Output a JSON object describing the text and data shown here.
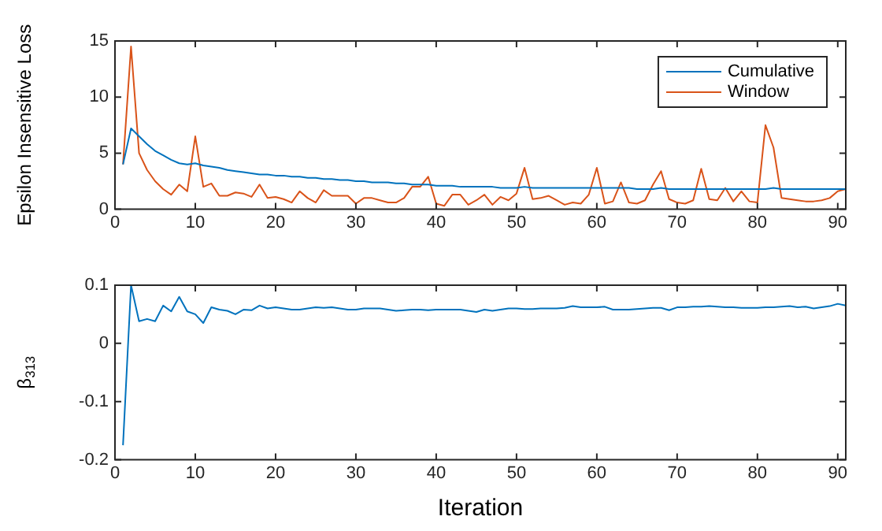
{
  "chart_data": [
    {
      "type": "line",
      "ylabel": "Epsilon Insensitive Loss",
      "x": [
        1,
        2,
        3,
        4,
        5,
        6,
        7,
        8,
        9,
        10,
        11,
        12,
        13,
        14,
        15,
        16,
        17,
        18,
        19,
        20,
        21,
        22,
        23,
        24,
        25,
        26,
        27,
        28,
        29,
        30,
        31,
        32,
        33,
        34,
        35,
        36,
        37,
        38,
        39,
        40,
        41,
        42,
        43,
        44,
        45,
        46,
        47,
        48,
        49,
        50,
        51,
        52,
        53,
        54,
        55,
        56,
        57,
        58,
        59,
        60,
        61,
        62,
        63,
        64,
        65,
        66,
        67,
        68,
        69,
        70,
        71,
        72,
        73,
        74,
        75,
        76,
        77,
        78,
        79,
        80,
        81,
        82,
        83,
        84,
        85,
        86,
        87,
        88,
        89,
        90,
        91
      ],
      "xlim": [
        0,
        91
      ],
      "xticks": [
        0,
        10,
        20,
        30,
        40,
        50,
        60,
        70,
        80,
        90
      ],
      "ylim": [
        0,
        15
      ],
      "yticks": [
        0,
        5,
        10,
        15
      ],
      "legend": "top right",
      "grid": false,
      "series": [
        {
          "name": "Cumulative",
          "color": "#0072bd",
          "values": [
            4,
            7.2,
            6.5,
            5.8,
            5.2,
            4.8,
            4.4,
            4.1,
            4,
            4.1,
            3.9,
            3.8,
            3.7,
            3.5,
            3.4,
            3.3,
            3.2,
            3.1,
            3.1,
            3,
            3,
            2.9,
            2.9,
            2.8,
            2.8,
            2.7,
            2.7,
            2.6,
            2.6,
            2.5,
            2.5,
            2.4,
            2.4,
            2.4,
            2.3,
            2.3,
            2.2,
            2.2,
            2.2,
            2.1,
            2.1,
            2.1,
            2,
            2,
            2,
            2,
            2,
            1.9,
            1.9,
            1.9,
            2,
            1.9,
            1.9,
            1.9,
            1.9,
            1.9,
            1.9,
            1.9,
            1.9,
            1.9,
            1.9,
            1.9,
            1.9,
            1.9,
            1.8,
            1.8,
            1.8,
            1.9,
            1.8,
            1.8,
            1.8,
            1.8,
            1.8,
            1.8,
            1.8,
            1.8,
            1.8,
            1.8,
            1.8,
            1.8,
            1.8,
            1.9,
            1.8,
            1.8,
            1.8,
            1.8,
            1.8,
            1.8,
            1.8,
            1.8,
            1.8
          ]
        },
        {
          "name": "Window",
          "color": "#d95319",
          "values": [
            4,
            14.5,
            5,
            3.5,
            2.5,
            1.8,
            1.3,
            2.2,
            1.6,
            6.5,
            2,
            2.3,
            1.2,
            1.2,
            1.5,
            1.4,
            1.1,
            2.2,
            1,
            1.1,
            0.9,
            0.6,
            1.6,
            1,
            0.6,
            1.7,
            1.2,
            1.2,
            1.2,
            0.5,
            1,
            1,
            0.8,
            0.6,
            0.6,
            1,
            2,
            2,
            2.9,
            0.5,
            0.3,
            1.3,
            1.3,
            0.4,
            0.8,
            1.3,
            0.4,
            1.1,
            0.8,
            1.4,
            3.7,
            0.9,
            1,
            1.2,
            0.8,
            0.4,
            0.6,
            0.5,
            1.3,
            3.7,
            0.5,
            0.7,
            2.4,
            0.6,
            0.5,
            0.8,
            2.2,
            3.4,
            0.9,
            0.6,
            0.5,
            0.8,
            3.6,
            0.9,
            0.8,
            1.9,
            0.7,
            1.6,
            0.7,
            0.6,
            7.5,
            5.5,
            1,
            0.9,
            0.8,
            0.7,
            0.7,
            0.8,
            1,
            1.6,
            1.8
          ]
        }
      ]
    },
    {
      "type": "line",
      "xlabel": "Iteration",
      "ylabel": "β$_{313}$",
      "x": [
        1,
        2,
        3,
        4,
        5,
        6,
        7,
        8,
        9,
        10,
        11,
        12,
        13,
        14,
        15,
        16,
        17,
        18,
        19,
        20,
        21,
        22,
        23,
        24,
        25,
        26,
        27,
        28,
        29,
        30,
        31,
        32,
        33,
        34,
        35,
        36,
        37,
        38,
        39,
        40,
        41,
        42,
        43,
        44,
        45,
        46,
        47,
        48,
        49,
        50,
        51,
        52,
        53,
        54,
        55,
        56,
        57,
        58,
        59,
        60,
        61,
        62,
        63,
        64,
        65,
        66,
        67,
        68,
        69,
        70,
        71,
        72,
        73,
        74,
        75,
        76,
        77,
        78,
        79,
        80,
        81,
        82,
        83,
        84,
        85,
        86,
        87,
        88,
        89,
        90,
        91
      ],
      "xlim": [
        0,
        91
      ],
      "xticks": [
        0,
        10,
        20,
        30,
        40,
        50,
        60,
        70,
        80,
        90
      ],
      "ylim": [
        -0.2,
        0.1
      ],
      "yticks": [
        -0.2,
        -0.1,
        0,
        0.1
      ],
      "grid": false,
      "series": [
        {
          "color": "#0072bd",
          "values": [
            -0.175,
            0.1,
            0.038,
            0.042,
            0.038,
            0.065,
            0.055,
            0.08,
            0.055,
            0.05,
            0.035,
            0.062,
            0.058,
            0.056,
            0.05,
            0.058,
            0.057,
            0.065,
            0.06,
            0.062,
            0.06,
            0.058,
            0.058,
            0.06,
            0.062,
            0.061,
            0.062,
            0.06,
            0.058,
            0.058,
            0.06,
            0.06,
            0.06,
            0.058,
            0.056,
            0.057,
            0.058,
            0.058,
            0.057,
            0.058,
            0.058,
            0.058,
            0.058,
            0.056,
            0.054,
            0.058,
            0.056,
            0.058,
            0.06,
            0.06,
            0.059,
            0.059,
            0.06,
            0.06,
            0.06,
            0.061,
            0.064,
            0.062,
            0.062,
            0.062,
            0.063,
            0.058,
            0.058,
            0.058,
            0.059,
            0.06,
            0.061,
            0.061,
            0.057,
            0.062,
            0.062,
            0.063,
            0.063,
            0.064,
            0.063,
            0.062,
            0.062,
            0.061,
            0.061,
            0.061,
            0.062,
            0.062,
            0.063,
            0.064,
            0.062,
            0.063,
            0.06,
            0.062,
            0.064,
            0.068,
            0.065
          ]
        }
      ]
    }
  ]
}
